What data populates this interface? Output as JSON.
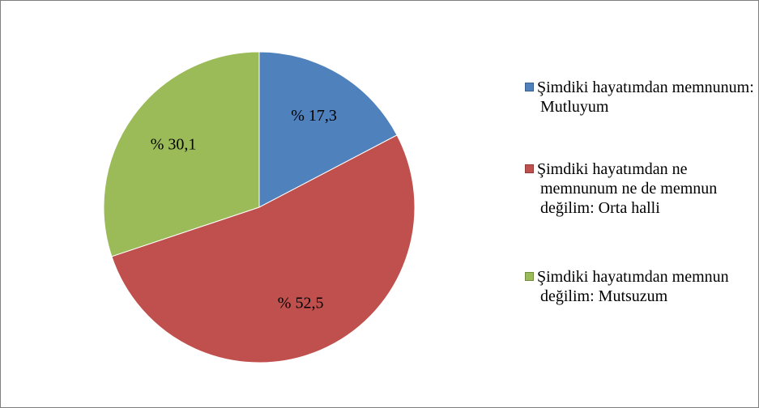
{
  "chart_data": {
    "type": "pie",
    "categories": [
      "Şimdiki hayatımdan memnunum: Mutluyum",
      "Şimdiki hayatımdan ne memnunum ne de memnun değilim: Orta halli",
      "Şimdiki hayatımdan memnun değilim: Mutsuzum"
    ],
    "values": [
      17.3,
      52.5,
      30.1
    ],
    "value_labels": [
      "% 17,3",
      "% 52,5",
      "% 30,1"
    ],
    "colors": [
      "#4f81bd",
      "#c0504d",
      "#9bbb59"
    ],
    "legend": "right"
  }
}
